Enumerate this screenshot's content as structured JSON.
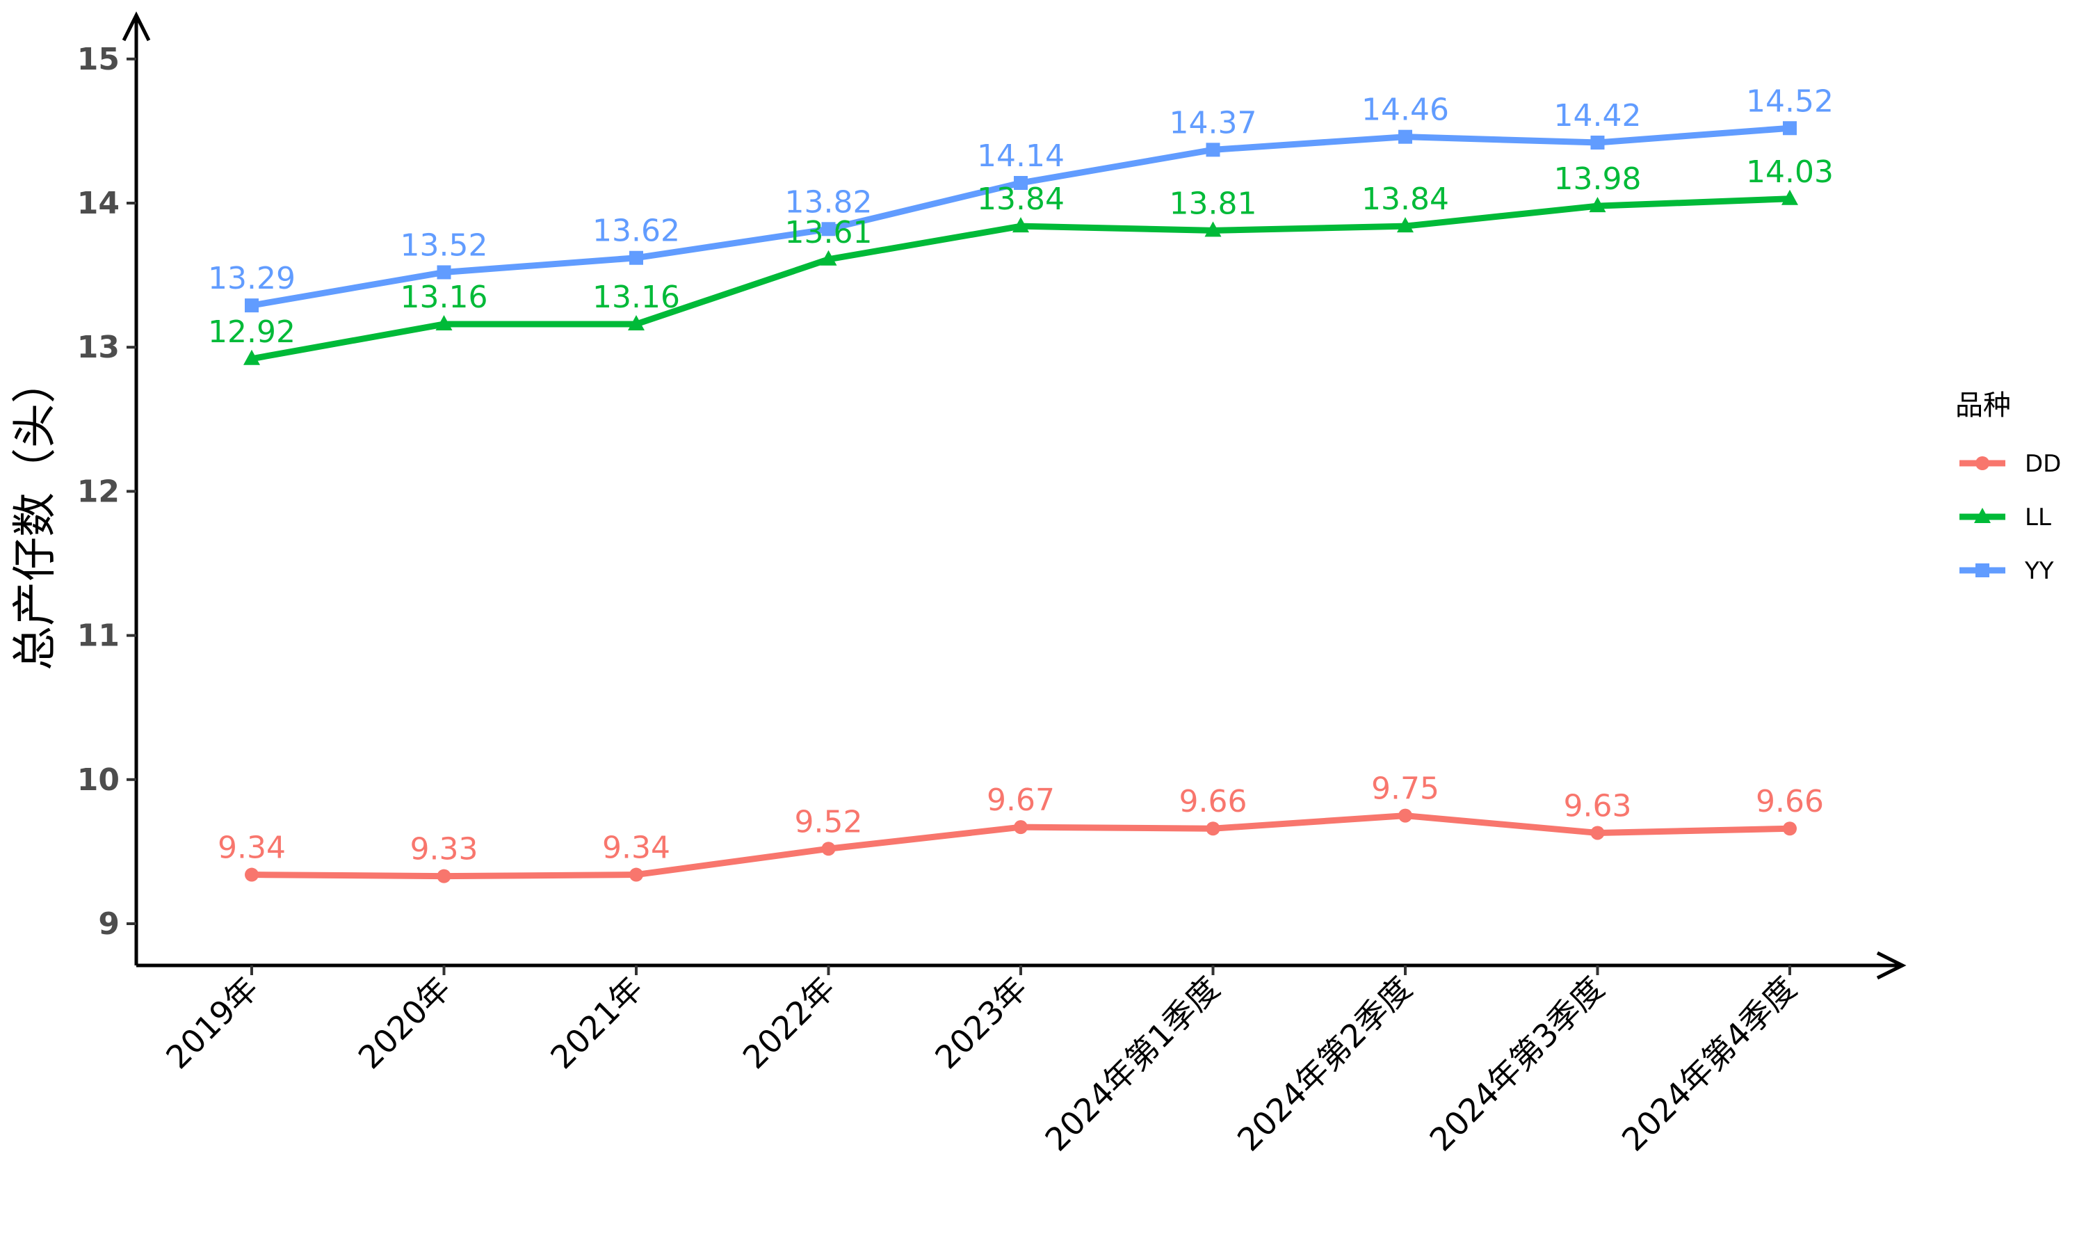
{
  "chart_data": {
    "type": "line",
    "ylabel": "总产仔数（头）",
    "xlabel": "",
    "ylim": [
      8.7,
      15.25
    ],
    "yticks": [
      9,
      10,
      11,
      12,
      13,
      14,
      15
    ],
    "ytick_labels": [
      "9",
      "10",
      "11",
      "12",
      "13",
      "14",
      "15"
    ],
    "categories": [
      "2019年",
      "2020年",
      "2021年",
      "2022年",
      "2023年",
      "2024年第1季度",
      "2024年第2季度",
      "2024年第3季度",
      "2024年第4季度"
    ],
    "grid": false,
    "legend": {
      "title": "品种",
      "position": "right"
    },
    "series": [
      {
        "name": "DD",
        "color": "#F8766D",
        "marker": "circle",
        "values": [
          9.34,
          9.33,
          9.34,
          9.52,
          9.67,
          9.66,
          9.75,
          9.63,
          9.66
        ],
        "labels": [
          "9.34",
          "9.33",
          "9.34",
          "9.52",
          "9.67",
          "9.66",
          "9.75",
          "9.63",
          "9.66"
        ]
      },
      {
        "name": "LL",
        "color": "#00BA38",
        "marker": "triangle",
        "values": [
          12.92,
          13.16,
          13.16,
          13.61,
          13.84,
          13.81,
          13.84,
          13.98,
          14.03
        ],
        "labels": [
          "12.92",
          "13.16",
          "13.16",
          "13.61",
          "13.84",
          "13.81",
          "13.84",
          "13.98",
          "14.03"
        ]
      },
      {
        "name": "YY",
        "color": "#619CFF",
        "marker": "square",
        "values": [
          13.29,
          13.52,
          13.62,
          13.82,
          14.14,
          14.37,
          14.46,
          14.42,
          14.52
        ],
        "labels": [
          "13.29",
          "13.52",
          "13.62",
          "13.82",
          "14.14",
          "14.37",
          "14.46",
          "14.42",
          "14.52"
        ]
      }
    ]
  }
}
